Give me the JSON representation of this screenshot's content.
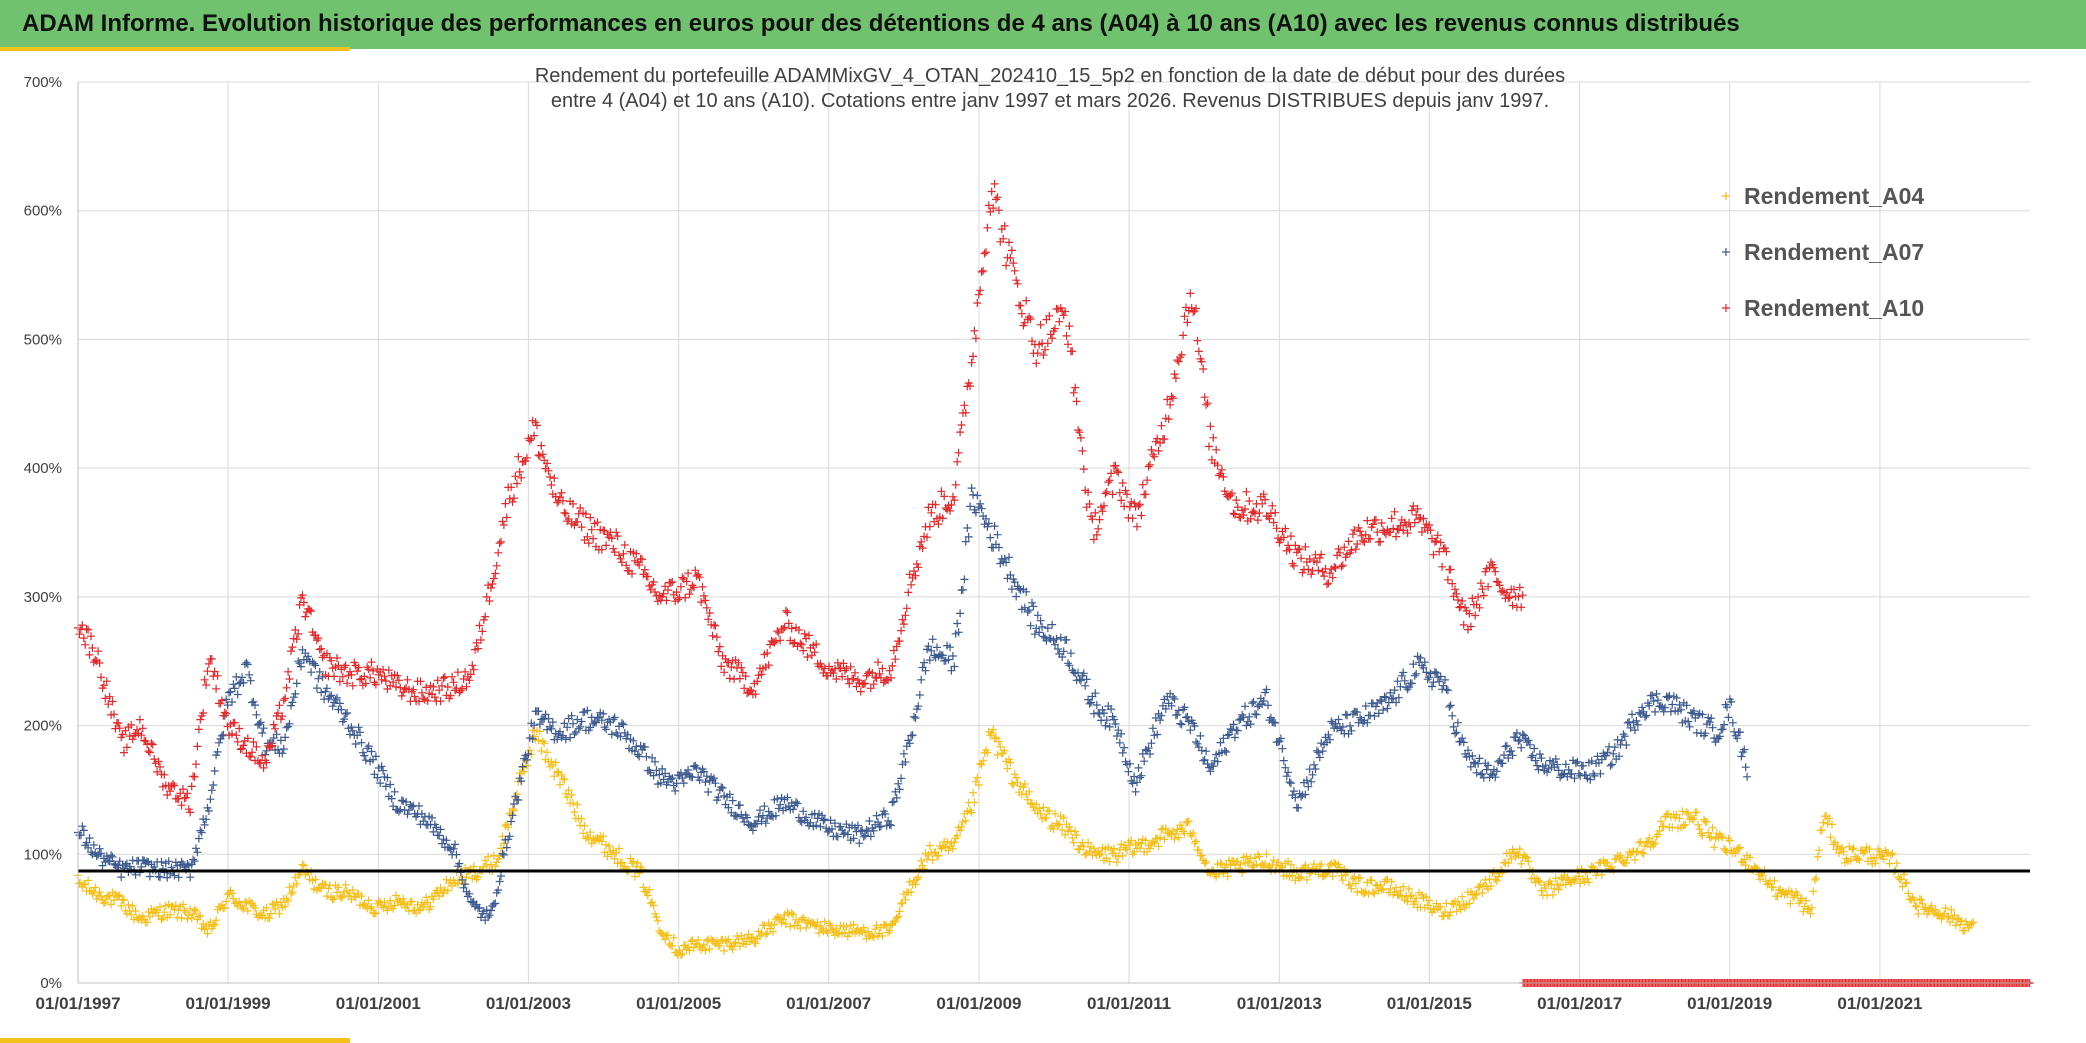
{
  "header": {
    "title": "ADAM Informe. Evolution historique des performances en euros pour des détentions de 4 ans (A04) à 10 ans (A10) avec les revenus connus distribués"
  },
  "theme": {
    "header_color": "#70c26e",
    "accent_color": "#f2c21b"
  },
  "chart_data": {
    "type": "scatter",
    "title": [
      "Rendement du portefeuille ADAMMixGV_4_OTAN_202410_15_5p2  en fonction de la date de début pour des durées",
      "entre 4 (A04) et 10 ans (A10). Cotations entre janv 1997 et mars 2026. Revenus DISTRIBUES depuis janv 1997."
    ],
    "xlabel": "",
    "ylabel": "",
    "x_range": [
      "1997-01-01",
      "2023-01-01"
    ],
    "ylim": [
      0,
      7
    ],
    "y_ticks": [
      "0%",
      "100%",
      "200%",
      "300%",
      "400%",
      "500%",
      "600%",
      "700%"
    ],
    "x_ticks": [
      "01/01/1997",
      "01/01/1999",
      "01/01/2001",
      "01/01/2003",
      "01/01/2005",
      "01/01/2007",
      "01/01/2009",
      "01/01/2011",
      "01/01/2013",
      "01/01/2015",
      "01/01/2017",
      "01/01/2019",
      "01/01/2021"
    ],
    "grid": true,
    "legend_position": "top-right",
    "marker": "+",
    "reference_line": {
      "y": 0.87,
      "color": "#000000"
    },
    "series": [
      {
        "name": "Rendement_A04",
        "color": "#f5bf1a",
        "end": "2022-04-01",
        "points": [
          [
            "1997-01-01",
            0.78
          ],
          [
            "1997-04-01",
            0.7
          ],
          [
            "1997-08-01",
            0.62
          ],
          [
            "1997-11-01",
            0.5
          ],
          [
            "1998-03-01",
            0.56
          ],
          [
            "1998-07-01",
            0.55
          ],
          [
            "1998-10-01",
            0.4
          ],
          [
            "1999-01-01",
            0.68
          ],
          [
            "1999-04-01",
            0.6
          ],
          [
            "1999-07-01",
            0.52
          ],
          [
            "1999-10-01",
            0.62
          ],
          [
            "2000-01-01",
            0.88
          ],
          [
            "2000-04-01",
            0.72
          ],
          [
            "2000-08-01",
            0.7
          ],
          [
            "2001-01-01",
            0.58
          ],
          [
            "2001-04-01",
            0.65
          ],
          [
            "2001-08-01",
            0.58
          ],
          [
            "2002-01-01",
            0.8
          ],
          [
            "2002-04-01",
            0.85
          ],
          [
            "2002-08-01",
            0.95
          ],
          [
            "2002-11-01",
            1.45
          ],
          [
            "2003-02-01",
            1.95
          ],
          [
            "2003-06-01",
            1.6
          ],
          [
            "2003-10-01",
            1.2
          ],
          [
            "2004-03-01",
            1.0
          ],
          [
            "2004-07-01",
            0.85
          ],
          [
            "2004-10-01",
            0.45
          ],
          [
            "2005-01-01",
            0.25
          ],
          [
            "2005-04-01",
            0.3
          ],
          [
            "2005-08-01",
            0.3
          ],
          [
            "2006-01-01",
            0.35
          ],
          [
            "2006-06-01",
            0.5
          ],
          [
            "2007-01-01",
            0.42
          ],
          [
            "2007-06-01",
            0.4
          ],
          [
            "2007-11-01",
            0.4
          ],
          [
            "2008-02-01",
            0.75
          ],
          [
            "2008-05-01",
            1.0
          ],
          [
            "2008-09-01",
            1.05
          ],
          [
            "2008-12-01",
            1.4
          ],
          [
            "2009-03-01",
            1.95
          ],
          [
            "2009-06-01",
            1.65
          ],
          [
            "2009-10-01",
            1.35
          ],
          [
            "2010-03-01",
            1.2
          ],
          [
            "2010-07-01",
            1.0
          ],
          [
            "2010-11-01",
            1.0
          ],
          [
            "2011-02-01",
            1.05
          ],
          [
            "2011-07-01",
            1.15
          ],
          [
            "2011-11-01",
            1.2
          ],
          [
            "2012-02-01",
            0.85
          ],
          [
            "2012-06-01",
            0.9
          ],
          [
            "2012-11-01",
            0.95
          ],
          [
            "2013-04-01",
            0.85
          ],
          [
            "2013-09-01",
            0.9
          ],
          [
            "2014-02-01",
            0.75
          ],
          [
            "2014-06-01",
            0.75
          ],
          [
            "2014-11-01",
            0.65
          ],
          [
            "2015-03-01",
            0.55
          ],
          [
            "2015-07-01",
            0.65
          ],
          [
            "2015-11-01",
            0.8
          ],
          [
            "2016-03-01",
            1.05
          ],
          [
            "2016-07-01",
            0.7
          ],
          [
            "2016-11-01",
            0.8
          ],
          [
            "2017-03-01",
            0.85
          ],
          [
            "2017-07-01",
            0.95
          ],
          [
            "2017-11-01",
            1.05
          ],
          [
            "2018-03-01",
            1.25
          ],
          [
            "2018-07-01",
            1.3
          ],
          [
            "2018-11-01",
            1.1
          ],
          [
            "2019-03-01",
            1.0
          ],
          [
            "2019-06-01",
            0.85
          ],
          [
            "2019-09-01",
            0.7
          ],
          [
            "2019-12-01",
            0.65
          ],
          [
            "2020-02-01",
            0.55
          ],
          [
            "2020-04-01",
            1.3
          ],
          [
            "2020-07-01",
            1.0
          ],
          [
            "2020-11-01",
            1.0
          ],
          [
            "2021-03-01",
            0.95
          ],
          [
            "2021-07-01",
            0.6
          ],
          [
            "2021-11-01",
            0.55
          ],
          [
            "2022-04-01",
            0.42
          ]
        ]
      },
      {
        "name": "Rendement_A07",
        "color": "#3c5a8f",
        "end": "2019-04-01",
        "points": [
          [
            "1997-01-01",
            1.2
          ],
          [
            "1997-04-01",
            1.0
          ],
          [
            "1997-08-01",
            0.88
          ],
          [
            "1997-11-01",
            0.9
          ],
          [
            "1998-03-01",
            0.88
          ],
          [
            "1998-07-01",
            0.88
          ],
          [
            "1998-10-01",
            1.4
          ],
          [
            "1999-01-01",
            2.2
          ],
          [
            "1999-04-01",
            2.45
          ],
          [
            "1999-07-01",
            1.85
          ],
          [
            "1999-10-01",
            1.85
          ],
          [
            "2000-01-01",
            2.6
          ],
          [
            "2000-04-01",
            2.3
          ],
          [
            "2000-08-01",
            2.05
          ],
          [
            "2001-01-01",
            1.65
          ],
          [
            "2001-04-01",
            1.4
          ],
          [
            "2001-08-01",
            1.3
          ],
          [
            "2002-01-01",
            1.05
          ],
          [
            "2002-04-01",
            0.6
          ],
          [
            "2002-07-01",
            0.5
          ],
          [
            "2002-10-01",
            1.2
          ],
          [
            "2003-02-01",
            2.05
          ],
          [
            "2003-06-01",
            1.95
          ],
          [
            "2003-10-01",
            2.05
          ],
          [
            "2004-03-01",
            2.0
          ],
          [
            "2004-07-01",
            1.8
          ],
          [
            "2004-10-01",
            1.6
          ],
          [
            "2005-01-01",
            1.55
          ],
          [
            "2005-04-01",
            1.65
          ],
          [
            "2005-08-01",
            1.45
          ],
          [
            "2006-01-01",
            1.25
          ],
          [
            "2006-06-01",
            1.4
          ],
          [
            "2007-01-01",
            1.2
          ],
          [
            "2007-06-01",
            1.15
          ],
          [
            "2007-11-01",
            1.3
          ],
          [
            "2008-02-01",
            1.9
          ],
          [
            "2008-05-01",
            2.6
          ],
          [
            "2008-09-01",
            2.5
          ],
          [
            "2008-12-01",
            3.8
          ],
          [
            "2009-03-01",
            3.5
          ],
          [
            "2009-06-01",
            3.2
          ],
          [
            "2009-10-01",
            2.8
          ],
          [
            "2010-03-01",
            2.6
          ],
          [
            "2010-07-01",
            2.2
          ],
          [
            "2010-11-01",
            2.0
          ],
          [
            "2011-02-01",
            1.55
          ],
          [
            "2011-07-01",
            2.2
          ],
          [
            "2011-11-01",
            2.0
          ],
          [
            "2012-02-01",
            1.65
          ],
          [
            "2012-06-01",
            2.0
          ],
          [
            "2012-11-01",
            2.2
          ],
          [
            "2013-04-01",
            1.4
          ],
          [
            "2013-09-01",
            1.95
          ],
          [
            "2014-02-01",
            2.05
          ],
          [
            "2014-06-01",
            2.15
          ],
          [
            "2014-11-01",
            2.45
          ],
          [
            "2015-03-01",
            2.35
          ],
          [
            "2015-07-01",
            1.75
          ],
          [
            "2015-11-01",
            1.6
          ],
          [
            "2016-03-01",
            1.9
          ],
          [
            "2016-07-01",
            1.7
          ],
          [
            "2016-11-01",
            1.65
          ],
          [
            "2017-03-01",
            1.65
          ],
          [
            "2017-07-01",
            1.8
          ],
          [
            "2017-11-01",
            2.15
          ],
          [
            "2018-03-01",
            2.2
          ],
          [
            "2018-07-01",
            2.05
          ],
          [
            "2018-11-01",
            1.95
          ],
          [
            "2019-01-01",
            2.15
          ],
          [
            "2019-04-01",
            1.65
          ]
        ]
      },
      {
        "name": "Rendement_A10",
        "color": "#e3282a",
        "end": "2016-04-01",
        "points": [
          [
            "1997-01-01",
            2.8
          ],
          [
            "1997-04-01",
            2.55
          ],
          [
            "1997-08-01",
            1.85
          ],
          [
            "1997-11-01",
            2.0
          ],
          [
            "1998-03-01",
            1.55
          ],
          [
            "1998-07-01",
            1.4
          ],
          [
            "1998-10-01",
            2.55
          ],
          [
            "1999-01-01",
            2.0
          ],
          [
            "1999-04-01",
            1.85
          ],
          [
            "1999-07-01",
            1.7
          ],
          [
            "1999-10-01",
            2.2
          ],
          [
            "2000-01-01",
            3.0
          ],
          [
            "2000-04-01",
            2.5
          ],
          [
            "2000-08-01",
            2.4
          ],
          [
            "2001-01-01",
            2.4
          ],
          [
            "2001-04-01",
            2.3
          ],
          [
            "2001-08-01",
            2.25
          ],
          [
            "2002-01-01",
            2.3
          ],
          [
            "2002-04-01",
            2.4
          ],
          [
            "2002-07-01",
            3.1
          ],
          [
            "2002-10-01",
            3.8
          ],
          [
            "2003-02-01",
            4.3
          ],
          [
            "2003-06-01",
            3.7
          ],
          [
            "2003-10-01",
            3.55
          ],
          [
            "2004-03-01",
            3.4
          ],
          [
            "2004-07-01",
            3.2
          ],
          [
            "2004-10-01",
            3.0
          ],
          [
            "2005-01-01",
            3.05
          ],
          [
            "2005-04-01",
            3.15
          ],
          [
            "2005-08-01",
            2.5
          ],
          [
            "2006-01-01",
            2.3
          ],
          [
            "2006-06-01",
            2.8
          ],
          [
            "2007-01-01",
            2.45
          ],
          [
            "2007-06-01",
            2.35
          ],
          [
            "2007-11-01",
            2.45
          ],
          [
            "2008-02-01",
            3.1
          ],
          [
            "2008-05-01",
            3.6
          ],
          [
            "2008-09-01",
            3.8
          ],
          [
            "2008-12-01",
            4.9
          ],
          [
            "2009-03-01",
            6.2
          ],
          [
            "2009-06-01",
            5.6
          ],
          [
            "2009-10-01",
            4.95
          ],
          [
            "2010-03-01",
            5.2
          ],
          [
            "2010-07-01",
            3.5
          ],
          [
            "2010-11-01",
            3.95
          ],
          [
            "2011-02-01",
            3.6
          ],
          [
            "2011-07-01",
            4.4
          ],
          [
            "2011-11-01",
            5.4
          ],
          [
            "2012-02-01",
            4.2
          ],
          [
            "2012-06-01",
            3.7
          ],
          [
            "2012-11-01",
            3.7
          ],
          [
            "2013-04-01",
            3.3
          ],
          [
            "2013-09-01",
            3.2
          ],
          [
            "2014-02-01",
            3.5
          ],
          [
            "2014-06-01",
            3.55
          ],
          [
            "2014-11-01",
            3.6
          ],
          [
            "2015-03-01",
            3.35
          ],
          [
            "2015-07-01",
            2.8
          ],
          [
            "2015-11-01",
            3.2
          ],
          [
            "2016-01-01",
            3.05
          ],
          [
            "2016-04-01",
            3.0
          ]
        ]
      }
    ],
    "flat_segment": {
      "start": "2016-04-01",
      "end": "2023-01-01",
      "y": 0.0,
      "color": "#e3282a"
    }
  }
}
